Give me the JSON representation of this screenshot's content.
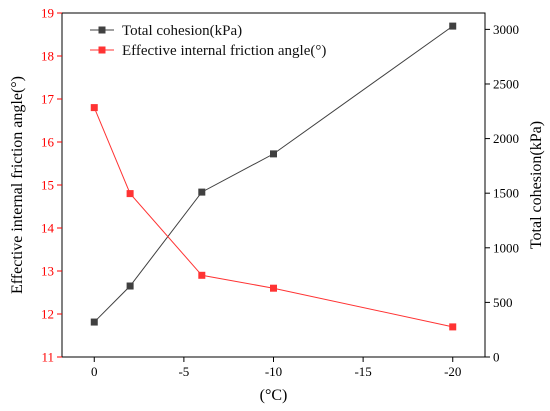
{
  "chart_data": {
    "type": "line",
    "x": [
      0,
      -2,
      -6,
      -10,
      -20
    ],
    "xlim": [
      1.8,
      -21.8
    ],
    "xticks": [
      "0",
      "-5",
      "-10",
      "-15",
      "-20"
    ],
    "xlabel": "(°C)",
    "left_axis": {
      "label": "Effective internal friction angle(°)",
      "lim": [
        11,
        19
      ],
      "ticks": [
        "11",
        "12",
        "13",
        "14",
        "15",
        "16",
        "17",
        "18",
        "19"
      ],
      "color": "#ff0000"
    },
    "right_axis": {
      "label": "Total cohesion(kPa)",
      "lim": [
        0,
        3150
      ],
      "ticks": [
        "0",
        "500",
        "1000",
        "1500",
        "2000",
        "2500",
        "3000"
      ],
      "color": "#000000"
    },
    "series": [
      {
        "name": "Total cohesion(kPa)",
        "axis": "right",
        "color": "#404040",
        "values": [
          320,
          650,
          1510,
          1860,
          3030
        ]
      },
      {
        "name": "Effective internal friction angle(°)",
        "axis": "left",
        "color": "#ff3333",
        "values": [
          16.8,
          14.8,
          12.9,
          12.6,
          11.7
        ]
      }
    ],
    "legend": "top-left",
    "grid": false
  }
}
